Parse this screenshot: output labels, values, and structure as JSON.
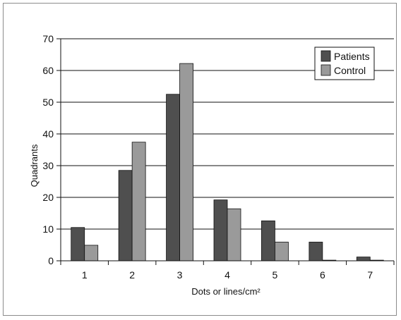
{
  "chart_data": {
    "type": "bar",
    "categories": [
      "1",
      "2",
      "3",
      "4",
      "5",
      "6",
      "7"
    ],
    "series": [
      {
        "name": "Patients",
        "values": [
          10.5,
          28.5,
          52.5,
          19.2,
          12.6,
          5.9,
          1.2
        ],
        "color": "#4f4f4f"
      },
      {
        "name": "Control",
        "values": [
          4.9,
          37.4,
          62.2,
          16.4,
          5.9,
          0.2,
          0.2
        ],
        "color": "#9a9a9a"
      }
    ],
    "title": "",
    "xlabel": "Dots or lines/cm²",
    "ylabel": "Quadrants",
    "ylim": [
      0,
      70
    ],
    "yticks": [
      0,
      10,
      20,
      30,
      40,
      50,
      60,
      70
    ],
    "grid": true,
    "legend_position": "top-right"
  }
}
